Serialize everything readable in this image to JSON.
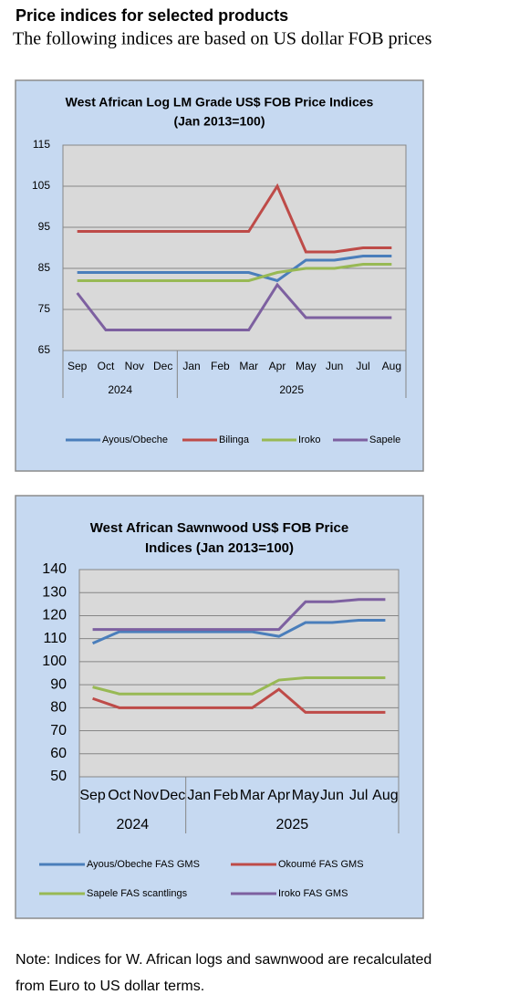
{
  "header": {
    "title": "Price indices for selected products",
    "subtitle": "The following indices are based on US dollar FOB prices"
  },
  "chart_data": [
    {
      "type": "line",
      "title": [
        "West African Log LM Grade US$ FOB Price Indices",
        "(Jan 2013=100)"
      ],
      "categories": [
        "Sep",
        "Oct",
        "Nov",
        "Dec",
        "Jan",
        "Feb",
        "Mar",
        "Apr",
        "May",
        "Jun",
        "Jul",
        "Aug"
      ],
      "groups": [
        {
          "label": "2024",
          "size": 4
        },
        {
          "label": "2025",
          "size": 8
        }
      ],
      "ylim": [
        65,
        115
      ],
      "yticks": [
        65,
        75,
        85,
        95,
        105,
        115
      ],
      "grid": true,
      "legend": "bottom",
      "series": [
        {
          "name": "Ayous/Obeche",
          "color": "#4a7ebb",
          "values": [
            84,
            84,
            84,
            84,
            84,
            84,
            84,
            82,
            87,
            87,
            88,
            88
          ]
        },
        {
          "name": "Bilinga",
          "color": "#be4b48",
          "values": [
            94,
            94,
            94,
            94,
            94,
            94,
            94,
            105,
            89,
            89,
            90,
            90
          ]
        },
        {
          "name": "Iroko",
          "color": "#98b954",
          "values": [
            82,
            82,
            82,
            82,
            82,
            82,
            82,
            84,
            85,
            85,
            86,
            86
          ]
        },
        {
          "name": "Sapele",
          "color": "#7d60a0",
          "values": [
            79,
            70,
            70,
            70,
            70,
            70,
            70,
            81,
            73,
            73,
            73,
            73
          ]
        }
      ]
    },
    {
      "type": "line",
      "title": [
        "West African Sawnwood US$ FOB Price",
        "Indices (Jan 2013=100)"
      ],
      "categories": [
        "Sep",
        "Oct",
        "Nov",
        "Dec",
        "Jan",
        "Feb",
        "Mar",
        "Apr",
        "May",
        "Jun",
        "Jul",
        "Aug"
      ],
      "groups": [
        {
          "label": "2024",
          "size": 4
        },
        {
          "label": "2025",
          "size": 8
        }
      ],
      "ylim": [
        50,
        140
      ],
      "yticks": [
        50,
        60,
        70,
        80,
        90,
        100,
        110,
        120,
        130,
        140
      ],
      "grid": true,
      "legend": "bottom",
      "series": [
        {
          "name": "Ayous/Obeche  FAS GMS",
          "color": "#4a7ebb",
          "values": [
            108,
            113,
            113,
            113,
            113,
            113,
            113,
            111,
            117,
            117,
            118,
            118
          ]
        },
        {
          "name": "Okoumé  FAS GMS",
          "color": "#be4b48",
          "values": [
            84,
            80,
            80,
            80,
            80,
            80,
            80,
            88,
            78,
            78,
            78,
            78
          ]
        },
        {
          "name": "Sapele FAS scantlings",
          "color": "#98b954",
          "values": [
            89,
            86,
            86,
            86,
            86,
            86,
            86,
            92,
            93,
            93,
            93,
            93
          ]
        },
        {
          "name": "Iroko FAS GMS",
          "color": "#7d60a0",
          "values": [
            114,
            114,
            114,
            114,
            114,
            114,
            114,
            114,
            126,
            126,
            127,
            127
          ]
        }
      ]
    }
  ],
  "note": [
    "Note: Indices for W. African logs and sawnwood are recalculated",
    "from Euro to US dollar terms."
  ]
}
